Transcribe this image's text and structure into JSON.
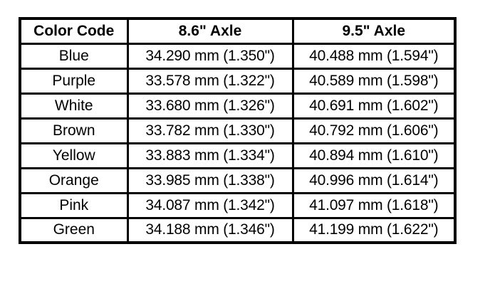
{
  "table": {
    "headers": [
      "Color Code",
      "8.6\" Axle",
      "9.5\" Axle"
    ],
    "rows": [
      [
        "Blue",
        "34.290 mm (1.350\")",
        "40.488 mm (1.594\")"
      ],
      [
        "Purple",
        "33.578 mm (1.322\")",
        "40.589 mm (1.598\")"
      ],
      [
        "White",
        "33.680 mm (1.326\")",
        "40.691 mm (1.602\")"
      ],
      [
        "Brown",
        "33.782 mm (1.330\")",
        "40.792 mm (1.606\")"
      ],
      [
        "Yellow",
        "33.883 mm (1.334\")",
        "40.894 mm (1.610\")"
      ],
      [
        "Orange",
        "33.985 mm (1.338\")",
        "40.996 mm (1.614\")"
      ],
      [
        "Pink",
        "34.087 mm (1.342\")",
        "41.097 mm (1.618\")"
      ],
      [
        "Green",
        "34.188 mm (1.346\")",
        "41.199 mm (1.622\")"
      ]
    ]
  }
}
